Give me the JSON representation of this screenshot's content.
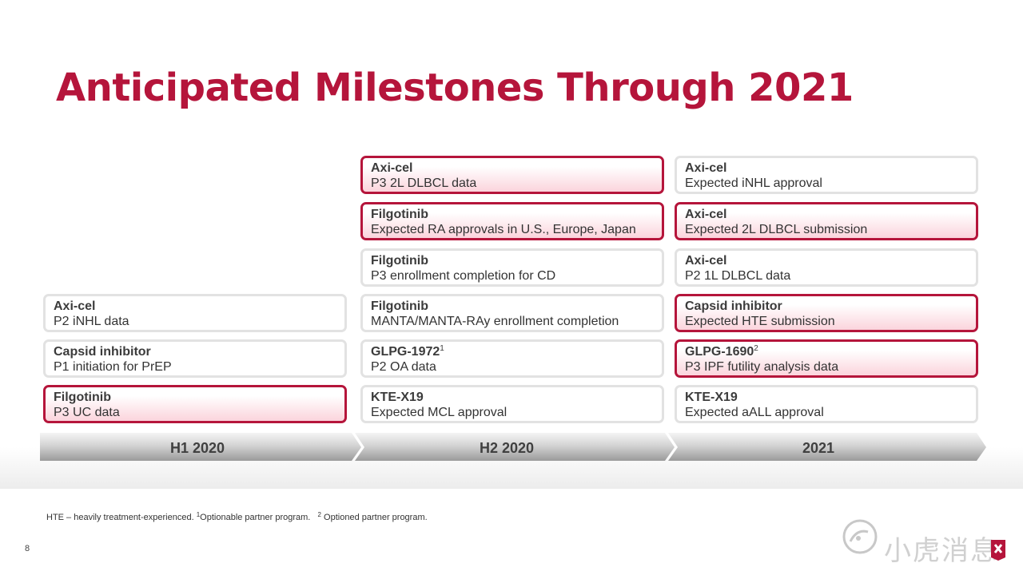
{
  "title": "Anticipated Milestones Through 2021",
  "columns": [
    {
      "period": "H1 2020",
      "cards": [
        {
          "name": "Axi-cel",
          "sup": "",
          "desc": "P2 iNHL data",
          "highlight": false
        },
        {
          "name": "Capsid inhibitor",
          "sup": "",
          "desc": "P1 initiation for PrEP",
          "highlight": false
        },
        {
          "name": "Filgotinib",
          "sup": "",
          "desc": "P3 UC data",
          "highlight": true
        }
      ]
    },
    {
      "period": "H2 2020",
      "cards": [
        {
          "name": "Axi-cel",
          "sup": "",
          "desc": "P3 2L DLBCL data",
          "highlight": true
        },
        {
          "name": "Filgotinib",
          "sup": "",
          "desc": "Expected RA approvals in U.S., Europe, Japan",
          "highlight": true
        },
        {
          "name": "Filgotinib",
          "sup": "",
          "desc": "P3 enrollment completion for CD",
          "highlight": false
        },
        {
          "name": "Filgotinib",
          "sup": "",
          "desc": "MANTA/MANTA-RAy enrollment completion",
          "highlight": false
        },
        {
          "name": "GLPG-1972",
          "sup": "1",
          "desc": "P2 OA data",
          "highlight": false
        },
        {
          "name": "KTE-X19",
          "sup": "",
          "desc": "Expected MCL approval",
          "highlight": false
        }
      ]
    },
    {
      "period": "2021",
      "cards": [
        {
          "name": "Axi-cel",
          "sup": "",
          "desc": "Expected iNHL approval",
          "highlight": false
        },
        {
          "name": "Axi-cel",
          "sup": "",
          "desc": "Expected 2L DLBCL submission",
          "highlight": true
        },
        {
          "name": "Axi-cel",
          "sup": "",
          "desc": "P2 1L DLBCL data",
          "highlight": false
        },
        {
          "name": "Capsid inhibitor",
          "sup": "",
          "desc": "Expected HTE submission",
          "highlight": true
        },
        {
          "name": "GLPG-1690",
          "sup": "2",
          "desc": "P3 IPF futility analysis data",
          "highlight": true
        },
        {
          "name": "KTE-X19",
          "sup": "",
          "desc": "Expected aALL approval",
          "highlight": false
        }
      ]
    }
  ],
  "footnote": {
    "hte": "HTE – heavily treatment-experienced.",
    "note1_mark": "1",
    "note1": "Optionable partner program.",
    "note2_mark": "2",
    "note2": "Optioned partner program."
  },
  "page_number": "8",
  "watermark_text": "小虎消息",
  "colors": {
    "accent": "#b5153b",
    "card_border": "#e2e2e2",
    "timeline": "#b0b0b0"
  },
  "icons": [
    "watermark-logo-icon",
    "brand-logo-icon"
  ]
}
